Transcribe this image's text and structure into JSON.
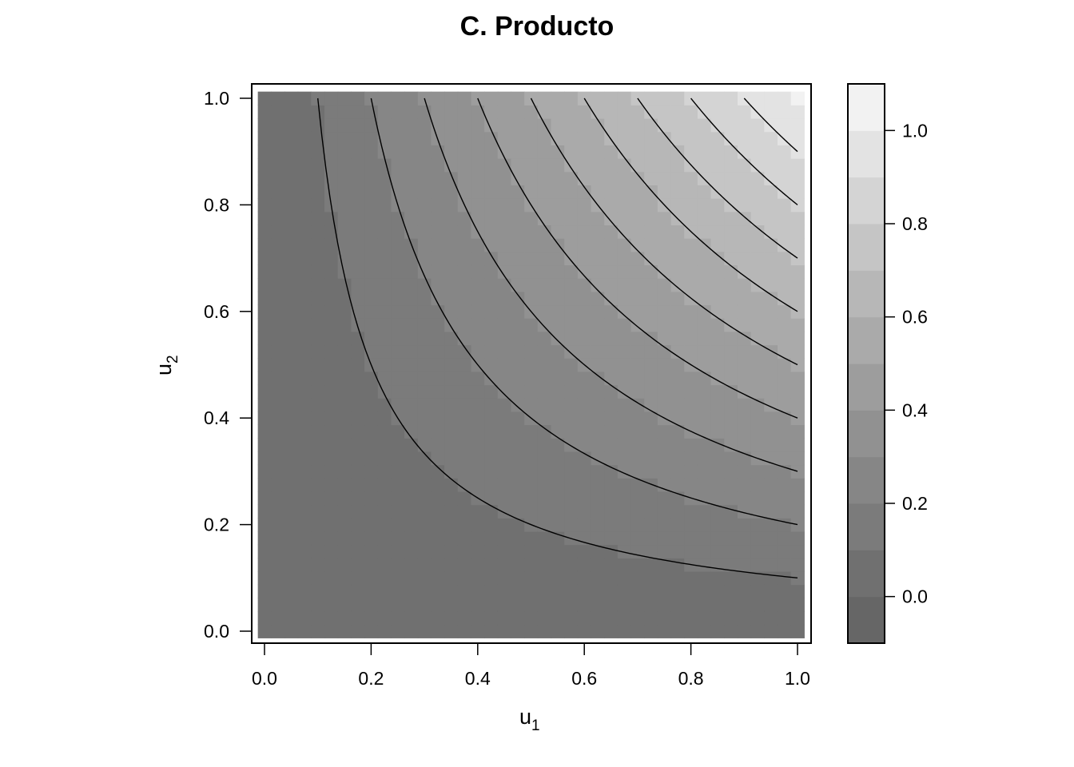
{
  "chart_data": {
    "type": "heatmap",
    "title": "C. Producto",
    "xlabel": "u",
    "xlabel_sub": "1",
    "ylabel": "u",
    "ylabel_sub": "2",
    "function": "u1*u2",
    "xlim": [
      0,
      1
    ],
    "ylim": [
      0,
      1
    ],
    "x_ticks": [
      "0.0",
      "0.2",
      "0.4",
      "0.6",
      "0.8",
      "1.0"
    ],
    "y_ticks": [
      "0.0",
      "0.2",
      "0.4",
      "0.6",
      "0.8",
      "1.0"
    ],
    "contour_levels": [
      0.1,
      0.2,
      0.3,
      0.4,
      0.5,
      0.6,
      0.7,
      0.8,
      0.9
    ],
    "colorbar": {
      "range": [
        -0.1,
        1.1
      ],
      "breaks": [
        -0.1,
        0.0,
        0.1,
        0.2,
        0.3,
        0.4,
        0.5,
        0.6,
        0.7,
        0.8,
        0.9,
        1.0,
        1.1
      ],
      "colors": [
        "#666666",
        "#707070",
        "#7b7b7b",
        "#868686",
        "#919191",
        "#9d9d9d",
        "#aaaaaa",
        "#b7b7b7",
        "#c5c5c5",
        "#d4d4d4",
        "#e3e3e3",
        "#f2f2f2"
      ],
      "ticks": [
        "0.0",
        "0.2",
        "0.4",
        "0.6",
        "0.8",
        "1.0"
      ]
    },
    "grid": false,
    "legend": "right"
  }
}
